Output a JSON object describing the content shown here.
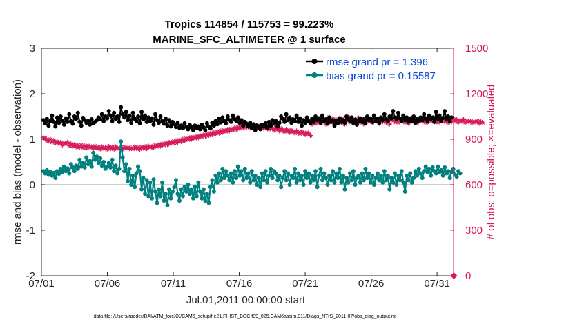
{
  "chart_data": {
    "type": "line",
    "title": "Tropics 114854 / 115753 = 99.223%",
    "subtitle": "MARINE_SFC_ALTIMETER @ 1 surface",
    "xlabel": "Jul.01,2011 00:00:00 start",
    "ylabel_left": "rmse and bias (model - observation)",
    "ylabel_right": "# of obs: o=possible; ×=evaluated",
    "footnote": "data file: /Users/raeder/DAI/ATM_forcXX/CAM6_setup/f.e21.FHIST_BGC.f09_025.CAM6assim.011/Diags_NTrS_2011-07/obs_diag_output.nc",
    "x_ticks": [
      "07/01",
      "07/06",
      "07/11",
      "07/16",
      "07/21",
      "07/26",
      "07/31"
    ],
    "x_tick_days": [
      0,
      5,
      10,
      15,
      20,
      25,
      30
    ],
    "xlim": [
      0,
      31.25
    ],
    "ylim_left": [
      -2,
      3
    ],
    "y_ticks_left": [
      "-2",
      "-1",
      "0",
      "1",
      "2",
      "3"
    ],
    "ylim_right": [
      0,
      1500
    ],
    "y_ticks_right": [
      "0",
      "300",
      "600",
      "900",
      "1200",
      "1500"
    ],
    "legend": [
      {
        "label": "rmse grand pr = 1.396",
        "color": "#000000"
      },
      {
        "label": "bias grand pr = 0.15587",
        "color": "#00807f"
      }
    ],
    "colors": {
      "rmse": "#000000",
      "bias": "#00807f",
      "obs": "#d6185a",
      "zero_line": "#c0c0c0",
      "legend_text": "#0a46d8"
    },
    "zero_line": 0,
    "last_obs_count": 0,
    "rmse": [
      1.42,
      1.35,
      1.45,
      1.3,
      1.4,
      1.52,
      1.38,
      1.28,
      1.48,
      1.36,
      1.5,
      1.41,
      1.32,
      1.46,
      1.38,
      1.55,
      1.4,
      1.34,
      1.5,
      1.45,
      1.58,
      1.38,
      1.3,
      1.47,
      1.42,
      1.36,
      1.4,
      1.32,
      1.44,
      1.35,
      1.38,
      1.42,
      1.48,
      1.44,
      1.55,
      1.4,
      1.5,
      1.46,
      1.62,
      1.52,
      1.4,
      1.58,
      1.45,
      1.5,
      1.38,
      1.7,
      1.55,
      1.48,
      1.6,
      1.42,
      1.52,
      1.36,
      1.58,
      1.45,
      1.4,
      1.5,
      1.35,
      1.6,
      1.44,
      1.52,
      1.38,
      1.48,
      1.4,
      1.46,
      1.32,
      1.55,
      1.42,
      1.36,
      1.5,
      1.4,
      1.34,
      1.45,
      1.3,
      1.42,
      1.28,
      1.38,
      1.33,
      1.27,
      1.36,
      1.25,
      1.3,
      1.24,
      1.35,
      1.27,
      1.22,
      1.31,
      1.26,
      1.2,
      1.3,
      1.24,
      1.28,
      1.22,
      1.32,
      1.26,
      1.2,
      1.35,
      1.28,
      1.24,
      1.36,
      1.3,
      1.4,
      1.33,
      1.45,
      1.37,
      1.48,
      1.4,
      1.35,
      1.5,
      1.42,
      1.38,
      1.52,
      1.44,
      1.4,
      1.48,
      1.36,
      1.42,
      1.3,
      1.38,
      1.34,
      1.28,
      1.36,
      1.25,
      1.33,
      1.2,
      1.3,
      1.26,
      1.22,
      1.32,
      1.28,
      1.35,
      1.24,
      1.38,
      1.3,
      1.42,
      1.34,
      1.4,
      1.28,
      1.36,
      1.5,
      1.45,
      1.38,
      1.55,
      1.42,
      1.48,
      1.36,
      1.44,
      1.4,
      1.52,
      1.38,
      1.46,
      1.3,
      1.42,
      1.36,
      1.48,
      1.4,
      1.35,
      1.45,
      1.38,
      1.5,
      1.42,
      1.46,
      1.36,
      1.52,
      1.4,
      1.44,
      1.34,
      1.48,
      1.38,
      1.42,
      1.3,
      1.4,
      1.35,
      1.45,
      1.38,
      1.42,
      1.36,
      1.5,
      1.44,
      1.4,
      1.48,
      1.36,
      1.43,
      1.32,
      1.4,
      1.46,
      1.38,
      1.44,
      1.35,
      1.5,
      1.42,
      1.46,
      1.38,
      1.52,
      1.4,
      1.45,
      1.36,
      1.48,
      1.42,
      1.55,
      1.44,
      1.4,
      1.5,
      1.46,
      1.62,
      1.48,
      1.44,
      1.58,
      1.46,
      1.4,
      1.52,
      1.42,
      1.48,
      1.38,
      1.45,
      1.4,
      1.5,
      1.36,
      1.44,
      1.4,
      1.48,
      1.42,
      1.55,
      1.46,
      1.4,
      1.52,
      1.45,
      1.48,
      1.38,
      1.6,
      1.45,
      1.52,
      1.4,
      1.47,
      1.62,
      1.45,
      1.5,
      1.4,
      1.48
    ],
    "bias": [
      0.3,
      0.25,
      0.32,
      0.22,
      0.28,
      0.2,
      0.26,
      0.15,
      0.3,
      0.24,
      0.35,
      0.28,
      0.4,
      0.3,
      0.36,
      0.25,
      0.45,
      0.38,
      0.3,
      0.42,
      0.35,
      0.55,
      0.4,
      0.48,
      0.38,
      0.6,
      0.45,
      0.52,
      0.4,
      0.7,
      0.55,
      0.62,
      0.48,
      0.58,
      0.42,
      0.5,
      0.35,
      0.4,
      0.48,
      0.38,
      0.55,
      0.3,
      0.42,
      0.25,
      0.35,
      0.95,
      0.6,
      0.3,
      0.45,
      0.08,
      0.35,
      0.0,
      0.2,
      -0.05,
      0.25,
      0.4,
      0.3,
      -0.1,
      0.15,
      -0.2,
      0.1,
      -0.25,
      0.05,
      -0.3,
      0.12,
      -0.15,
      -0.4,
      -0.1,
      -0.25,
      0.05,
      -0.35,
      -0.2,
      -0.45,
      -0.1,
      -0.3,
      -0.15,
      -0.05,
      0.1,
      -0.2,
      -0.35,
      -0.1,
      -0.25,
      -0.05,
      -0.15,
      0.0,
      -0.2,
      -0.1,
      -0.3,
      -0.05,
      -0.25,
      0.05,
      -0.15,
      -0.3,
      -0.1,
      -0.35,
      -0.2,
      -0.4,
      -0.05,
      0.1,
      -0.15,
      0.2,
      0.05,
      0.25,
      0.1,
      0.35,
      0.15,
      0.3,
      0.2,
      0.1,
      0.25,
      0.05,
      0.3,
      0.15,
      0.4,
      0.2,
      0.3,
      0.1,
      0.35,
      0.15,
      0.25,
      0.05,
      0.3,
      0.1,
      0.2,
      0.0,
      0.15,
      -0.05,
      0.25,
      0.1,
      0.3,
      0.05,
      0.2,
      0.35,
      0.15,
      0.3,
      0.25,
      0.1,
      0.2,
      -0.05,
      0.15,
      0.3,
      0.1,
      0.25,
      0.0,
      0.2,
      0.15,
      0.35,
      0.05,
      0.25,
      0.1,
      0.2,
      0.0,
      0.3,
      0.15,
      0.25,
      0.05,
      0.2,
      0.1,
      0.3,
      -0.05,
      0.2,
      0.35,
      0.1,
      0.25,
      0.15,
      0.0,
      0.2,
      0.1,
      0.3,
      0.05,
      0.25,
      0.15,
      0.35,
      0.05,
      0.2,
      -0.1,
      0.15,
      0.05,
      0.25,
      0.1,
      0.3,
      0.0,
      0.15,
      0.2,
      0.05,
      0.25,
      0.1,
      0.35,
      0.15,
      0.25,
      0.05,
      0.2,
      0.0,
      0.15,
      0.25,
      0.1,
      0.2,
      0.05,
      0.3,
      0.1,
      0.2,
      -0.1,
      0.15,
      0.05,
      0.25,
      0.0,
      0.2,
      0.1,
      0.3,
      0.05,
      -0.15,
      0.2,
      0.1,
      0.25,
      0.05,
      0.15,
      0.3,
      0.2,
      0.35,
      0.25,
      0.15,
      0.3,
      0.4,
      0.28,
      0.35,
      0.2,
      0.38,
      0.3,
      0.25,
      0.4,
      0.28,
      0.32,
      0.2,
      0.38,
      0.25,
      0.3,
      0.15,
      0.28,
      0.35,
      0.22,
      0.18,
      0.3,
      0.25
    ],
    "obs_count": [
      910,
      905,
      895,
      888,
      900,
      880,
      892,
      875,
      885,
      870,
      880,
      862,
      875,
      868,
      880,
      858,
      870,
      855,
      865,
      850,
      860,
      848,
      862,
      845,
      855,
      842,
      858,
      845,
      850,
      838,
      855,
      840,
      848,
      836,
      850,
      840,
      845,
      835,
      852,
      838,
      848,
      835,
      850,
      842,
      838,
      845,
      832,
      848,
      840,
      845,
      838,
      842,
      835,
      850,
      840,
      845,
      835,
      848,
      842,
      850,
      838,
      855,
      845,
      852,
      845,
      860,
      850,
      865,
      855,
      870,
      860,
      875,
      865,
      880,
      870,
      885,
      875,
      890,
      880,
      895,
      885,
      900,
      890,
      905,
      895,
      910,
      900,
      915,
      905,
      920,
      910,
      925,
      915,
      930,
      920,
      935,
      925,
      940,
      930,
      945,
      935,
      950,
      940,
      955,
      945,
      960,
      950,
      965,
      955,
      970,
      960,
      975,
      965,
      980,
      970,
      985,
      975,
      990,
      980,
      985,
      975,
      990,
      980,
      995,
      985,
      975,
      990,
      980,
      970,
      985,
      975,
      965,
      980,
      970,
      960,
      975,
      965,
      955,
      970,
      960,
      950,
      965,
      955,
      945,
      960,
      950,
      940,
      955,
      945,
      935,
      950,
      940,
      930,
      945,
      935,
      925,
      1000,
      1030,
      1005,
      1035,
      1010,
      1040,
      1015,
      1030,
      1000,
      1025,
      1045,
      1010,
      1035,
      1005,
      1030,
      1020,
      1040,
      1010,
      1035,
      1000,
      1025,
      1045,
      1015,
      1035,
      1005,
      1030,
      1020,
      1040,
      1010,
      1025,
      1000,
      1030,
      1045,
      1015,
      1030,
      1010,
      1040,
      1020,
      1035,
      1005,
      1030,
      1015,
      1040,
      1010,
      1030,
      1000,
      1025,
      1045,
      1015,
      1035,
      1010,
      1030,
      1020,
      1040,
      1010,
      1030,
      1005,
      1025,
      1040,
      1015,
      1035,
      1010,
      1030,
      1020,
      1040,
      1015,
      1030,
      1010,
      1035,
      1020,
      1040,
      1015,
      1030,
      1010,
      1025,
      1020,
      1035,
      1015,
      1030,
      1010,
      1028,
      1015,
      1035,
      1020,
      1030,
      1012,
      1025,
      1018,
      1030,
      1010,
      1022,
      1015,
      1020,
      1008,
      1018,
      1012,
      1020,
      1005,
      1015,
      1010
    ]
  }
}
